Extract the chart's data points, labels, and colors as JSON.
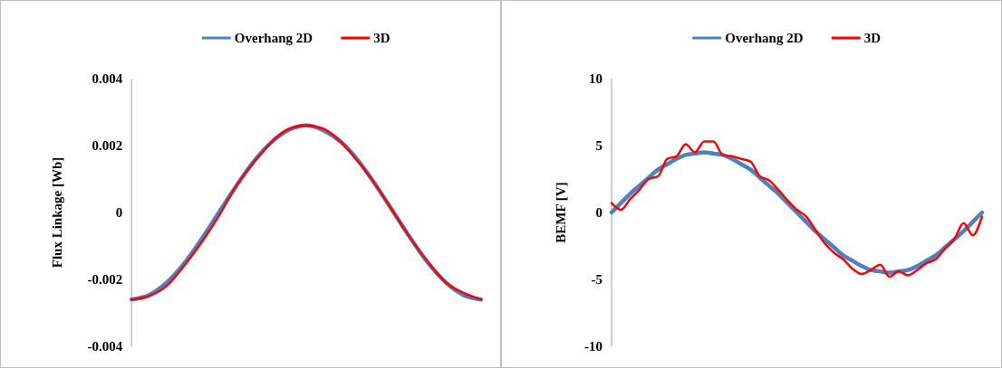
{
  "chart_data": [
    {
      "type": "line",
      "ylabel": "Flux Linkage [Wb]",
      "legend": "top",
      "tick_labels": "y",
      "ylim": [
        -0.004,
        0.004
      ],
      "yticks": [
        -0.004,
        -0.002,
        0,
        0.002,
        0.004
      ],
      "categories": [
        null,
        null,
        null,
        null,
        null,
        null,
        null,
        null,
        null,
        null,
        null,
        null,
        null,
        null,
        null,
        null,
        null,
        null,
        null,
        null,
        null
      ],
      "series": [
        {
          "name": "Overhang 2D",
          "color": "#4f81bd",
          "values": [
            -0.0026,
            -0.00247,
            -0.0021,
            -0.00153,
            -0.0008,
            0,
            0.0008,
            0.00153,
            0.0021,
            0.00247,
            0.0026,
            0.00245,
            0.0021,
            0.00153,
            0.0008,
            0,
            -0.0008,
            -0.00153,
            -0.0021,
            -0.00247,
            -0.0026
          ]
        },
        {
          "name": "3D",
          "color": "#ff0000",
          "values": [
            -0.0026,
            -0.0025,
            -0.0022,
            -0.0016,
            -0.0009,
            -0.0001,
            0.0008,
            0.0015,
            0.0021,
            0.0025,
            0.0026,
            0.0025,
            0.0021,
            0.0015,
            0.0008,
            0,
            -0.0008,
            -0.0015,
            -0.0021,
            -0.0024,
            -0.0026
          ]
        }
      ]
    },
    {
      "type": "line",
      "ylabel": "BEMF  [V]",
      "legend": "top",
      "tick_labels": "y",
      "ylim": [
        -10,
        10
      ],
      "yticks": [
        -10,
        -5,
        0,
        5,
        10
      ],
      "categories": [
        null,
        null,
        null,
        null,
        null,
        null,
        null,
        null,
        null,
        null,
        null,
        null,
        null,
        null,
        null,
        null,
        null,
        null,
        null,
        null,
        null,
        null,
        null,
        null,
        null,
        null,
        null,
        null,
        null,
        null,
        null,
        null,
        null,
        null,
        null,
        null,
        null,
        null,
        null,
        null,
        null
      ],
      "series": [
        {
          "name": "Overhang 2D",
          "color": "#4f81bd",
          "values": [
            0,
            0.7,
            1.4,
            2.0,
            2.6,
            3.2,
            3.6,
            4.0,
            4.3,
            4.4,
            4.5,
            4.4,
            4.3,
            4.0,
            3.6,
            3.2,
            2.6,
            2.0,
            1.4,
            0.7,
            0,
            -0.7,
            -1.4,
            -2.0,
            -2.6,
            -3.2,
            -3.6,
            -4.0,
            -4.3,
            -4.4,
            -4.5,
            -4.4,
            -4.3,
            -4.0,
            -3.6,
            -3.2,
            -2.6,
            -2.0,
            -1.4,
            -0.7,
            0
          ]
        },
        {
          "name": "3D",
          "color": "#ff0000",
          "values": [
            0.7,
            0.2,
            1.0,
            1.7,
            2.5,
            2.7,
            4.0,
            4.2,
            5.1,
            4.5,
            5.3,
            5.3,
            4.3,
            4.2,
            4.0,
            3.8,
            2.7,
            2.4,
            1.7,
            0.9,
            0.2,
            -0.3,
            -1.3,
            -2.3,
            -3.0,
            -3.5,
            -4.2,
            -4.6,
            -4.3,
            -3.9,
            -4.8,
            -4.4,
            -4.7,
            -4.3,
            -3.8,
            -3.5,
            -2.7,
            -2.0,
            -0.8,
            -1.7,
            -0.3
          ]
        }
      ]
    }
  ]
}
